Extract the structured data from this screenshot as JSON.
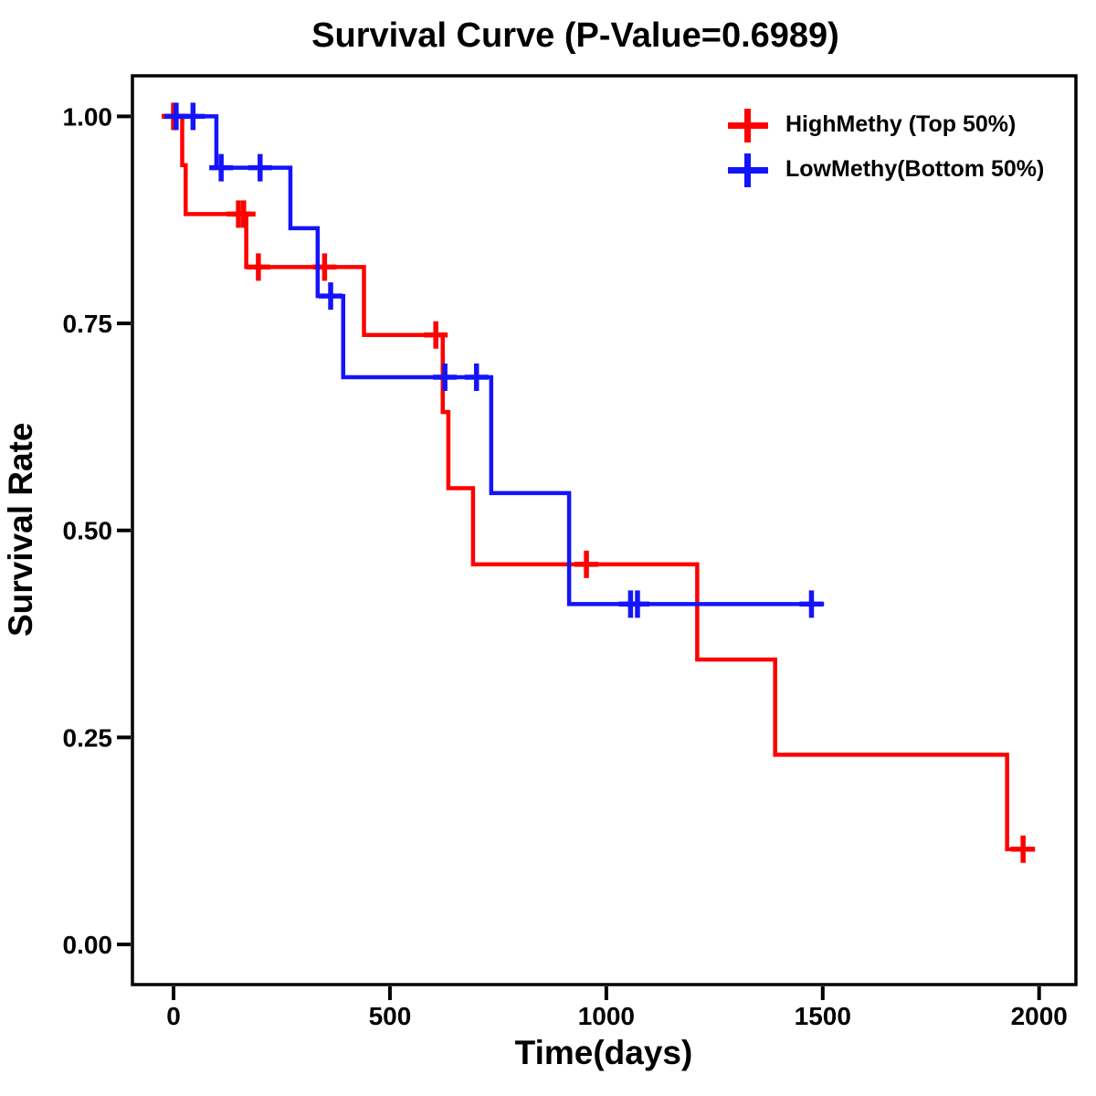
{
  "figure": {
    "background": "#FFFFFF",
    "text_color": "#000000"
  },
  "chart_data": {
    "type": "line",
    "subtype": "kaplan-meier-step-survival",
    "title": "Survival Curve (P-Value=0.6989)",
    "p_value": "0.6989",
    "xlabel": "Time(days)",
    "ylabel": "Survival Rate",
    "grid": false,
    "legend_position": "top-right-inside",
    "xlim": [
      -95,
      2085
    ],
    "ylim": [
      -0.0485,
      1.049
    ],
    "x_ticks": [
      {
        "value": 0,
        "label": "0"
      },
      {
        "value": 500,
        "label": "500"
      },
      {
        "value": 1000,
        "label": "1000"
      },
      {
        "value": 1500,
        "label": "1500"
      },
      {
        "value": 2000,
        "label": "2000"
      }
    ],
    "y_ticks": [
      {
        "value": 0.0,
        "label": "0.00"
      },
      {
        "value": 0.25,
        "label": "0.25"
      },
      {
        "value": 0.5,
        "label": "0.50"
      },
      {
        "value": 0.75,
        "label": "0.75"
      },
      {
        "value": 1.0,
        "label": "1.00"
      }
    ],
    "series": [
      {
        "id": "highmethy",
        "name": "HighMethy (Top 50%)",
        "color": "#FF0000",
        "steps": [
          [
            0,
            1.0
          ],
          [
            20,
            0.941
          ],
          [
            28,
            0.882
          ],
          [
            168,
            0.818
          ],
          [
            440,
            0.736
          ],
          [
            622,
            0.643
          ],
          [
            635,
            0.551
          ],
          [
            692,
            0.459
          ],
          [
            1210,
            0.344
          ],
          [
            1390,
            0.229
          ],
          [
            1926,
            0.115
          ]
        ],
        "end_time": 1990,
        "censors": [
          [
            0,
            1.0
          ],
          [
            150,
            0.882
          ],
          [
            162,
            0.882
          ],
          [
            196,
            0.818
          ],
          [
            349,
            0.818
          ],
          [
            606,
            0.736
          ],
          [
            954,
            0.459
          ],
          [
            1963,
            0.115
          ]
        ]
      },
      {
        "id": "lowmethy",
        "name": "LowMethy(Bottom 50%)",
        "color": "#1414FA",
        "steps": [
          [
            0,
            1.0
          ],
          [
            99,
            0.938
          ],
          [
            270,
            0.865
          ],
          [
            333,
            0.783
          ],
          [
            392,
            0.685
          ],
          [
            734,
            0.545
          ],
          [
            914,
            0.411
          ]
        ],
        "end_time": 1503,
        "censors": [
          [
            6,
            1.0
          ],
          [
            45,
            1.0
          ],
          [
            110,
            0.938
          ],
          [
            200,
            0.938
          ],
          [
            363,
            0.783
          ],
          [
            627,
            0.685
          ],
          [
            700,
            0.685
          ],
          [
            1056,
            0.411
          ],
          [
            1072,
            0.411
          ],
          [
            1474,
            0.411
          ]
        ]
      }
    ]
  }
}
